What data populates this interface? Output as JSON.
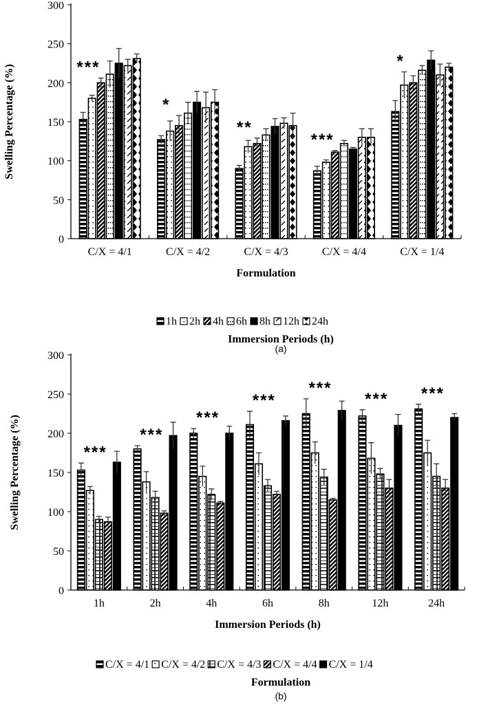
{
  "chart_data": [
    {
      "type": "bar",
      "panel_label": "(a)",
      "xlabel": "Formulation",
      "ylabel": "Swelling Percentage (%)",
      "ylim": [
        0,
        300
      ],
      "yticks": [
        0,
        50,
        100,
        150,
        200,
        250,
        300
      ],
      "legend_title": "Immersion Periods (h)",
      "legend_position": "bottom",
      "categories": [
        "C/X = 4/1",
        "C/X = 4/2",
        "C/X = 4/3",
        "C/X = 4/4",
        "C/X = 1/4"
      ],
      "significance": [
        "***",
        "*",
        "**",
        "***",
        "*"
      ],
      "series": [
        {
          "name": "1h",
          "pattern": "hstripe",
          "values": [
            153,
            127,
            90,
            87,
            163
          ],
          "errors": [
            9,
            5,
            4,
            6,
            14
          ]
        },
        {
          "name": "2h",
          "pattern": "dots",
          "values": [
            180,
            138,
            118,
            98,
            197
          ],
          "errors": [
            4,
            13,
            8,
            3,
            17
          ]
        },
        {
          "name": "4h",
          "pattern": "diag",
          "values": [
            200,
            145,
            122,
            111,
            200
          ],
          "errors": [
            6,
            13,
            7,
            2,
            9
          ]
        },
        {
          "name": "6h",
          "pattern": "dotgrid",
          "values": [
            211,
            161,
            133,
            122,
            216
          ],
          "errors": [
            17,
            14,
            8,
            4,
            6
          ]
        },
        {
          "name": "8h",
          "pattern": "solid",
          "values": [
            225,
            175,
            144,
            115,
            229
          ],
          "errors": [
            19,
            14,
            10,
            2,
            12
          ]
        },
        {
          "name": "12h",
          "pattern": "dashdiag",
          "values": [
            222,
            168,
            148,
            130,
            210
          ],
          "errors": [
            8,
            20,
            7,
            11,
            14
          ]
        },
        {
          "name": "24h",
          "pattern": "diamond",
          "values": [
            231,
            175,
            145,
            130,
            220
          ],
          "errors": [
            6,
            16,
            16,
            11,
            5
          ]
        }
      ]
    },
    {
      "type": "bar",
      "panel_label": "(b)",
      "xlabel": "Immersion Periods (h)",
      "ylabel": "Swelling Percentage (%)",
      "ylim": [
        0,
        300
      ],
      "yticks": [
        0,
        50,
        100,
        150,
        200,
        250,
        300
      ],
      "legend_title": "Formulation",
      "legend_position": "bottom",
      "categories": [
        "1h",
        "2h",
        "4h",
        "6h",
        "8h",
        "12h",
        "24h"
      ],
      "significance": [
        "***",
        "***",
        "***",
        "***",
        "***",
        "***",
        "***"
      ],
      "series": [
        {
          "name": "C/X = 4/1",
          "pattern": "hstripe",
          "values": [
            153,
            180,
            200,
            211,
            225,
            222,
            231
          ],
          "errors": [
            9,
            4,
            6,
            17,
            19,
            8,
            6
          ]
        },
        {
          "name": "C/X = 4/2",
          "pattern": "dots",
          "values": [
            127,
            138,
            145,
            161,
            175,
            168,
            175
          ],
          "errors": [
            5,
            13,
            13,
            14,
            14,
            20,
            16
          ]
        },
        {
          "name": "C/X = 4/3",
          "pattern": "grid",
          "values": [
            90,
            118,
            122,
            133,
            144,
            148,
            145
          ],
          "errors": [
            4,
            8,
            7,
            8,
            10,
            7,
            16
          ]
        },
        {
          "name": "C/X = 4/4",
          "pattern": "diag",
          "values": [
            87,
            98,
            111,
            122,
            115,
            130,
            130
          ],
          "errors": [
            6,
            3,
            2,
            4,
            2,
            11,
            11
          ]
        },
        {
          "name": "C/X = 1/4",
          "pattern": "solid",
          "values": [
            163,
            197,
            200,
            216,
            229,
            210,
            220
          ],
          "errors": [
            14,
            17,
            9,
            6,
            12,
            14,
            5
          ]
        }
      ]
    }
  ]
}
